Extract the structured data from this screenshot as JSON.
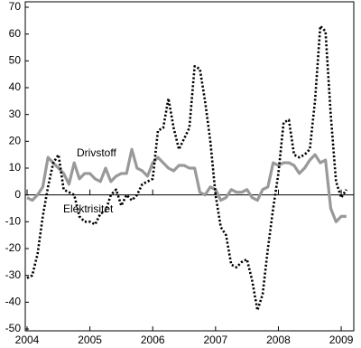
{
  "chart_data": {
    "type": "line",
    "xlim": [
      2004,
      2009.2
    ],
    "xticks": [
      2004,
      2005,
      2006,
      2007,
      2008,
      2009
    ],
    "ylim": [
      -50,
      70
    ],
    "yticks": [
      -50,
      -40,
      -30,
      -20,
      -10,
      0,
      10,
      20,
      30,
      40,
      50,
      60,
      70
    ],
    "x": [
      2004,
      2004.083,
      2004.167,
      2004.25,
      2004.333,
      2004.417,
      2004.5,
      2004.583,
      2004.667,
      2004.75,
      2004.833,
      2004.917,
      2005,
      2005.083,
      2005.167,
      2005.25,
      2005.333,
      2005.417,
      2005.5,
      2005.583,
      2005.667,
      2005.75,
      2005.833,
      2005.917,
      2006,
      2006.083,
      2006.167,
      2006.25,
      2006.333,
      2006.417,
      2006.5,
      2006.583,
      2006.667,
      2006.75,
      2006.833,
      2006.917,
      2007,
      2007.083,
      2007.167,
      2007.25,
      2007.333,
      2007.417,
      2007.5,
      2007.583,
      2007.667,
      2007.75,
      2007.833,
      2007.917,
      2008,
      2008.083,
      2008.167,
      2008.25,
      2008.333,
      2008.417,
      2008.5,
      2008.583,
      2008.667,
      2008.75,
      2008.833,
      2008.917,
      2009,
      2009.083
    ],
    "series": [
      {
        "name": "Drivstoff",
        "color": "#999999",
        "style": "solid",
        "values": [
          -1,
          -2,
          0,
          3,
          14,
          12,
          10,
          8,
          4,
          12,
          6,
          8,
          8,
          6,
          5,
          10,
          5,
          7,
          8,
          8,
          17,
          10,
          9,
          7,
          12,
          14,
          12,
          10,
          9,
          11,
          11,
          10,
          10,
          1,
          0,
          3,
          2,
          -2,
          -1,
          2,
          1,
          1,
          2,
          -1,
          -2,
          2,
          3,
          12,
          11,
          12,
          12,
          11,
          8,
          10,
          13,
          15,
          12,
          13,
          -5,
          -10,
          -8,
          -8
        ]
      },
      {
        "name": "Elektrisitet",
        "color": "#000000",
        "style": "dotted",
        "values": [
          -31,
          -30,
          -22,
          -8,
          3,
          12,
          15,
          2,
          1,
          0,
          -8,
          -10,
          -10,
          -11,
          -7,
          -6,
          0,
          2,
          -4,
          0,
          -2,
          0,
          4,
          5,
          6,
          24,
          25,
          36,
          25,
          17,
          21,
          25,
          48,
          47,
          35,
          20,
          0,
          -12,
          -15,
          -26,
          -27,
          -25,
          -24,
          -32,
          -43,
          -37,
          -20,
          -5,
          8,
          27,
          28,
          15,
          14,
          15,
          17,
          35,
          63,
          61,
          30,
          5,
          -1,
          2
        ]
      }
    ]
  }
}
